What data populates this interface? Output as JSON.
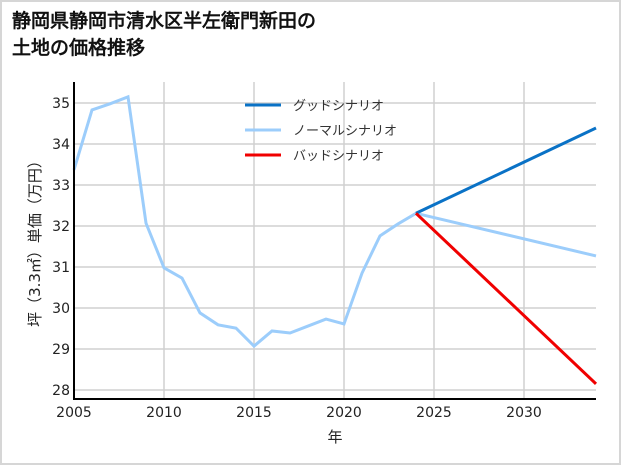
{
  "title": {
    "line1": "静岡県静岡市清水区半左衛門新田の",
    "line2": "土地の価格推移"
  },
  "colors": {
    "good": "#0a72c6",
    "normal": "#9ccdfb",
    "bad": "#f00000",
    "grid": "#d0d0d0",
    "axis": "#000000"
  },
  "chart_data": {
    "type": "line",
    "title": "静岡県静岡市清水区半左衛門新田の土地の価格推移",
    "xlabel": "年",
    "ylabel": "坪（3.3㎡）単価（万円）",
    "xlim": [
      2005,
      2034
    ],
    "ylim": [
      27.8,
      35.5
    ],
    "xticks": [
      2005,
      2010,
      2015,
      2020,
      2025,
      2030
    ],
    "yticks": [
      28,
      29,
      30,
      31,
      32,
      33,
      34,
      35
    ],
    "grid": true,
    "legend_position": "upper center",
    "series": [
      {
        "name": "グッドシナリオ",
        "color": "#0a72c6",
        "x": [
          2024,
          2034
        ],
        "values": [
          32.31,
          34.39
        ]
      },
      {
        "name": "ノーマルシナリオ",
        "color": "#9ccdfb",
        "x": [
          2005,
          2006,
          2007,
          2008,
          2009,
          2010,
          2011,
          2012,
          2013,
          2014,
          2015,
          2016,
          2017,
          2018,
          2019,
          2020,
          2021,
          2022,
          2023,
          2024,
          2034
        ],
        "values": [
          33.37,
          34.83,
          34.98,
          35.15,
          32.07,
          30.98,
          30.73,
          29.88,
          29.59,
          29.51,
          29.07,
          29.44,
          29.39,
          29.56,
          29.73,
          29.61,
          30.85,
          31.76,
          32.05,
          32.31,
          31.27
        ]
      },
      {
        "name": "バッドシナリオ",
        "color": "#f00000",
        "x": [
          2024,
          2034
        ],
        "values": [
          32.31,
          28.15
        ]
      }
    ]
  }
}
